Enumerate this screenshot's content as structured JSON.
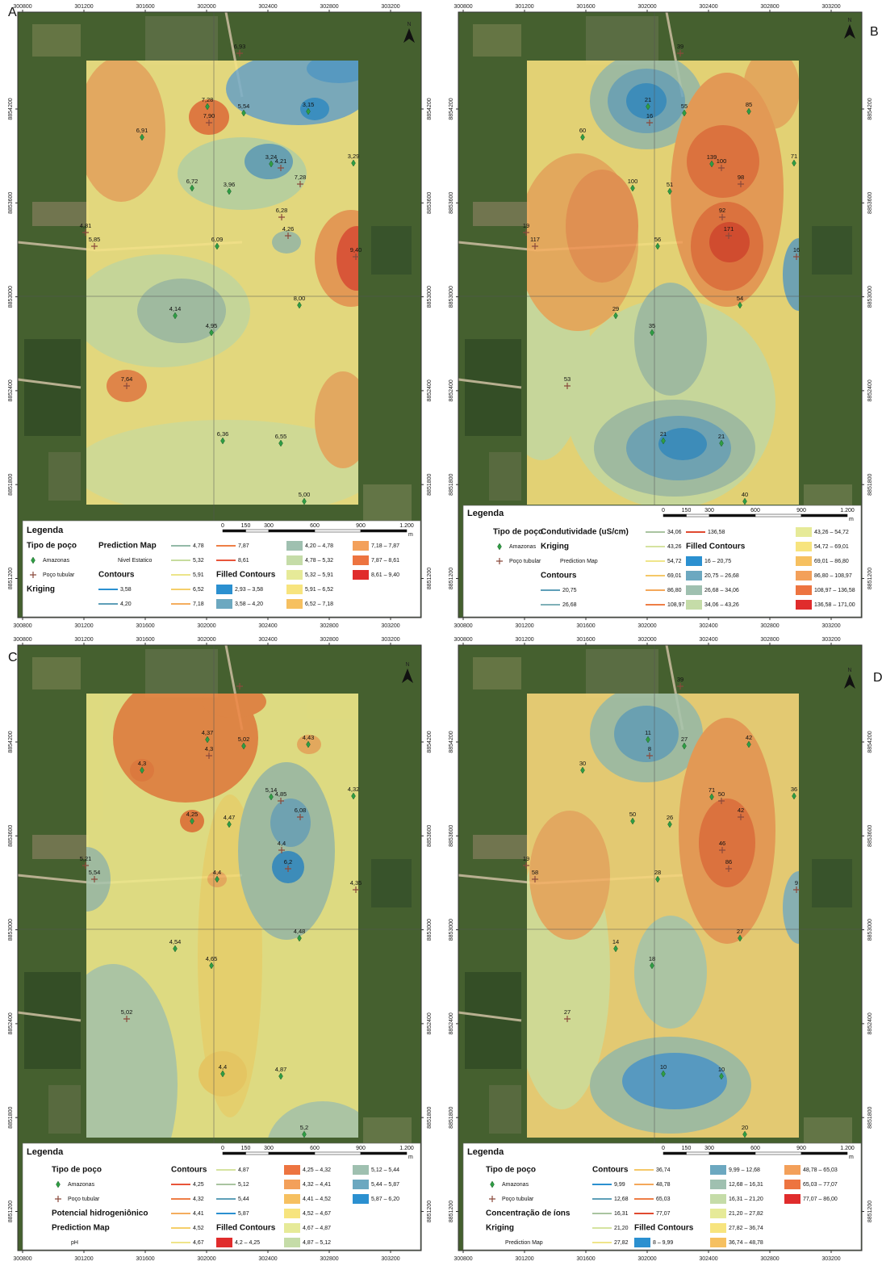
{
  "x_ticks": [
    300800,
    301200,
    301600,
    302000,
    302400,
    302800,
    303200
  ],
  "y_ticks": [
    8851200,
    8851800,
    8852400,
    8853000,
    8853600,
    8854200
  ],
  "scale_ticks": [
    0,
    150,
    300,
    600,
    900,
    {
      "value": 1200,
      "label": "1.200"
    }
  ],
  "scale_unit": "m",
  "north": "N",
  "panels": [
    {
      "letter": "A",
      "wells": [
        "6,93",
        "7,28",
        "7,90",
        "5,54",
        "3,15",
        "6,91",
        "3,24",
        "4,21",
        "3,29",
        "6,72",
        "3,96",
        "7,28",
        "6,28",
        "4,81",
        "4,26",
        "5,85",
        "6,09",
        "9,40",
        "8,00",
        "4,14",
        "4,95",
        "7,64",
        "6,36",
        "6,55",
        "5,00"
      ],
      "legend": {
        "title": "Legenda",
        "columns": [
          [
            {
              "text": "Tipo de poço",
              "bold": true
            },
            {
              "text": "Amazonas",
              "marker": "diamond"
            },
            {
              "text": "Poço tubular",
              "marker": "cross"
            },
            {
              "text": "Kriging",
              "bold": true
            }
          ],
          [
            {
              "text": "Prediction Map",
              "bold": true
            },
            {
              "text": "Nivel Estatico"
            },
            {
              "text": "Contours",
              "bold": true
            },
            {
              "text": "3,58",
              "line": "#2b90d0"
            },
            {
              "text": "4,20",
              "line": "#5e9fb8"
            }
          ],
          [
            {
              "text": "4,78",
              "line": "#94b9a8"
            },
            {
              "text": "5,32",
              "line": "#c6dc9e"
            },
            {
              "text": "5,91",
              "line": "#ece58a"
            },
            {
              "text": "6,52",
              "line": "#f5cf6a"
            },
            {
              "text": "7,18",
              "line": "#f4ad5e"
            }
          ],
          [
            {
              "text": "7,87",
              "line": "#ee7e46"
            },
            {
              "text": "8,61",
              "line": "#e8553a"
            },
            {
              "text": "Filled Contours",
              "bold": true
            },
            {
              "text": "2,93 – 3,58",
              "fill": "#2b90d0"
            },
            {
              "text": "3,58 – 4,20",
              "fill": "#6ca8c0"
            }
          ],
          [
            {
              "text": "4,20 – 4,78",
              "fill": "#9fc0b0"
            },
            {
              "text": "4,78 – 5,32",
              "fill": "#c5dca8"
            },
            {
              "text": "5,32 – 5,91",
              "fill": "#e6ea98"
            },
            {
              "text": "5,91 – 6,52",
              "fill": "#f7e47e"
            },
            {
              "text": "6,52 – 7,18",
              "fill": "#f6c060"
            }
          ],
          [
            {
              "text": "7,18 – 7,87",
              "fill": "#f3a05a"
            },
            {
              "text": "7,87 – 8,61",
              "fill": "#ed7440"
            },
            {
              "text": "8,61 – 9,40",
              "fill": "#e02c2c"
            }
          ]
        ]
      }
    },
    {
      "letter": "B",
      "wells": [
        "39",
        "21",
        "16",
        "55",
        "85",
        "60",
        "139",
        "100",
        "71",
        "100",
        "51",
        "98",
        "92",
        "19",
        "171",
        "117",
        "56",
        "16",
        "54",
        "29",
        "35",
        "53",
        "21",
        "21",
        "40"
      ],
      "legend": {
        "title": "Legenda",
        "columns": [
          [
            {
              "text": "Tipo de poço",
              "bold": true
            },
            {
              "text": "Amazonas",
              "marker": "diamond"
            },
            {
              "text": "Poço tubular",
              "marker": "cross"
            }
          ],
          [
            {
              "text": "Condutividade (uS/cm)",
              "bold": true
            },
            {
              "text": "Kriging",
              "bold": true
            },
            {
              "text": "Prediction Map"
            },
            {
              "text": "Contours",
              "bold": true
            },
            {
              "text": "20,75",
              "line": "#5e9fb8"
            },
            {
              "text": "26,68",
              "line": "#7fb0b8"
            }
          ],
          [
            {
              "text": "34,06",
              "line": "#a9c4a0"
            },
            {
              "text": "43,26",
              "line": "#d5e3a0"
            },
            {
              "text": "54,72",
              "line": "#f0e58a"
            },
            {
              "text": "69,01",
              "line": "#f5c868"
            },
            {
              "text": "86,80",
              "line": "#f4a85a"
            },
            {
              "text": "108,97",
              "line": "#ee7e46"
            }
          ],
          [
            {
              "text": "136,58",
              "line": "#e04a30"
            },
            {
              "text": "Filled Contours",
              "bold": true
            },
            {
              "text": "16 – 20,75",
              "fill": "#2b90d0"
            },
            {
              "text": "20,75 – 26,68",
              "fill": "#6ca8c0"
            },
            {
              "text": "26,68 – 34,06",
              "fill": "#9fc0b0"
            },
            {
              "text": "34,06 – 43,26",
              "fill": "#c5dca8"
            }
          ],
          [
            {
              "text": "43,26 – 54,72",
              "fill": "#e6ea98"
            },
            {
              "text": "54,72 – 69,01",
              "fill": "#f7e47e"
            },
            {
              "text": "69,01 – 86,80",
              "fill": "#f6c060"
            },
            {
              "text": "86,80 – 108,97",
              "fill": "#f3a05a"
            },
            {
              "text": "108,97 – 136,58",
              "fill": "#ed7440"
            },
            {
              "text": "136,58 – 171,00",
              "fill": "#e02c2c"
            }
          ]
        ]
      }
    },
    {
      "letter": "C",
      "wells": [
        null,
        "4,37",
        "4,3",
        "5,02",
        "4,43",
        "4,3",
        "5,14",
        "4,85",
        "4,32",
        "4,25",
        "4,47",
        "6,08",
        "4,4",
        "5,21",
        "6,2",
        "5,54",
        "4,4",
        "4,35",
        "4,48",
        "4,54",
        "4,65",
        "5,02",
        "4,4",
        "4,87",
        "5,2"
      ],
      "legend": {
        "title": "Legenda",
        "columns": [
          [
            {
              "text": "Tipo de poço",
              "bold": true
            },
            {
              "text": "Amazonas",
              "marker": "diamond"
            },
            {
              "text": "Poço tubular",
              "marker": "cross"
            },
            {
              "text": "Potencial hidrogeniônico",
              "bold": true
            },
            {
              "text": "Prediction Map",
              "bold": true
            },
            {
              "text": "pH"
            }
          ],
          [
            {
              "text": "Contours",
              "bold": true
            },
            {
              "text": "4,25",
              "line": "#e8553a"
            },
            {
              "text": "4,32",
              "line": "#ee7e46"
            },
            {
              "text": "4,41",
              "line": "#f4ad5e"
            },
            {
              "text": "4,52",
              "line": "#f5cf6a"
            },
            {
              "text": "4,67",
              "line": "#f0e58a"
            }
          ],
          [
            {
              "text": "4,87",
              "line": "#d5e3a0"
            },
            {
              "text": "5,12",
              "line": "#a9c4a0"
            },
            {
              "text": "5,44",
              "line": "#5e9fb8"
            },
            {
              "text": "5,87",
              "line": "#2b90d0"
            },
            {
              "text": "Filled Contours",
              "bold": true
            },
            {
              "text": "4,2 – 4,25",
              "fill": "#e02c2c"
            }
          ],
          [
            {
              "text": "4,25 – 4,32",
              "fill": "#ed7440"
            },
            {
              "text": "4,32 – 4,41",
              "fill": "#f3a05a"
            },
            {
              "text": "4,41 – 4,52",
              "fill": "#f6c060"
            },
            {
              "text": "4,52 – 4,67",
              "fill": "#f7e47e"
            },
            {
              "text": "4,67 – 4,87",
              "fill": "#e6ea98"
            },
            {
              "text": "4,87 – 5,12",
              "fill": "#c5dca8"
            }
          ],
          [
            {
              "text": "5,12 – 5,44",
              "fill": "#9fc0b0"
            },
            {
              "text": "5,44 – 5,87",
              "fill": "#6ca8c0"
            },
            {
              "text": "5,87 – 6,20",
              "fill": "#2b90d0"
            }
          ]
        ]
      }
    },
    {
      "letter": "D",
      "wells": [
        "39",
        "11",
        "8",
        "27",
        "42",
        "30",
        "71",
        "50",
        "36",
        "50",
        "26",
        "42",
        "46",
        "19",
        "86",
        "58",
        "28",
        "9",
        "27",
        "14",
        "18",
        "27",
        "10",
        "10",
        "20"
      ],
      "legend": {
        "title": "Legenda",
        "columns": [
          [
            {
              "text": "Tipo de poço",
              "bold": true
            },
            {
              "text": "Amazonas",
              "marker": "diamond"
            },
            {
              "text": "Poço tubular",
              "marker": "cross"
            },
            {
              "text": "Concentração de íons",
              "bold": true
            },
            {
              "text": "Kriging",
              "bold": true
            },
            {
              "text": "Prediction Map"
            }
          ],
          [
            {
              "text": "Contours",
              "bold": true
            },
            {
              "text": "9,99",
              "line": "#2b90d0"
            },
            {
              "text": "12,68",
              "line": "#5e9fb8"
            },
            {
              "text": "16,31",
              "line": "#a9c4a0"
            },
            {
              "text": "21,20",
              "line": "#d5e3a0"
            },
            {
              "text": "27,82",
              "line": "#f0e58a"
            }
          ],
          [
            {
              "text": "36,74",
              "line": "#f5c868"
            },
            {
              "text": "48,78",
              "line": "#f4a85a"
            },
            {
              "text": "65,03",
              "line": "#ee7e46"
            },
            {
              "text": "77,07",
              "line": "#e04a30"
            },
            {
              "text": "Filled Contours",
              "bold": true
            },
            {
              "text": "8 – 9,99",
              "fill": "#2b90d0"
            }
          ],
          [
            {
              "text": "9,99 – 12,68",
              "fill": "#6ca8c0"
            },
            {
              "text": "12,68 – 16,31",
              "fill": "#9fc0b0"
            },
            {
              "text": "16,31 – 21,20",
              "fill": "#c5dca8"
            },
            {
              "text": "21,20 – 27,82",
              "fill": "#e6ea98"
            },
            {
              "text": "27,82 – 36,74",
              "fill": "#f7e47e"
            },
            {
              "text": "36,74 – 48,78",
              "fill": "#f6c060"
            }
          ],
          [
            {
              "text": "48,78 – 65,03",
              "fill": "#f3a05a"
            },
            {
              "text": "65,03 – 77,07",
              "fill": "#ed7440"
            },
            {
              "text": "77,07 – 86,00",
              "fill": "#e02c2c"
            }
          ]
        ]
      }
    }
  ]
}
